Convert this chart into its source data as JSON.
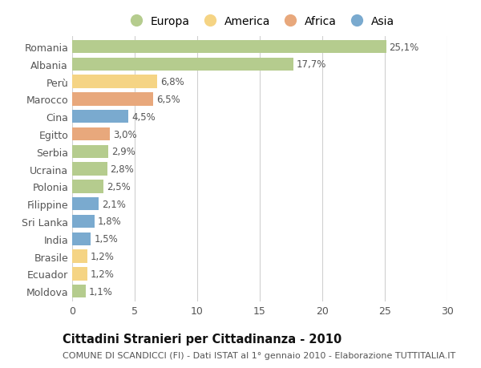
{
  "categories": [
    "Romania",
    "Albania",
    "Perù",
    "Marocco",
    "Cina",
    "Egitto",
    "Serbia",
    "Ucraina",
    "Polonia",
    "Filippine",
    "Sri Lanka",
    "India",
    "Brasile",
    "Ecuador",
    "Moldova"
  ],
  "values": [
    25.1,
    17.7,
    6.8,
    6.5,
    4.5,
    3.0,
    2.9,
    2.8,
    2.5,
    2.1,
    1.8,
    1.5,
    1.2,
    1.2,
    1.1
  ],
  "labels": [
    "25,1%",
    "17,7%",
    "6,8%",
    "6,5%",
    "4,5%",
    "3,0%",
    "2,9%",
    "2,8%",
    "2,5%",
    "2,1%",
    "1,8%",
    "1,5%",
    "1,2%",
    "1,2%",
    "1,1%"
  ],
  "continents": [
    "Europa",
    "Europa",
    "America",
    "Africa",
    "Asia",
    "Africa",
    "Europa",
    "Europa",
    "Europa",
    "Asia",
    "Asia",
    "Asia",
    "America",
    "America",
    "Europa"
  ],
  "continent_colors": {
    "Europa": "#b5cc8e",
    "America": "#f5d484",
    "Africa": "#e8a87c",
    "Asia": "#7aaacf"
  },
  "legend_order": [
    "Europa",
    "America",
    "Africa",
    "Asia"
  ],
  "title": "Cittadini Stranieri per Cittadinanza - 2010",
  "subtitle": "COMUNE DI SCANDICCI (FI) - Dati ISTAT al 1° gennaio 2010 - Elaborazione TUTTITALIA.IT",
  "xlim": [
    0,
    30
  ],
  "xticks": [
    0,
    5,
    10,
    15,
    20,
    25,
    30
  ],
  "background_color": "#ffffff",
  "grid_color": "#d0d0d0",
  "bar_height": 0.75,
  "label_fontsize": 8.5,
  "tick_fontsize": 9,
  "legend_fontsize": 10,
  "title_fontsize": 10.5,
  "subtitle_fontsize": 8,
  "label_color": "#555555",
  "title_color": "#111111",
  "subtitle_color": "#555555"
}
